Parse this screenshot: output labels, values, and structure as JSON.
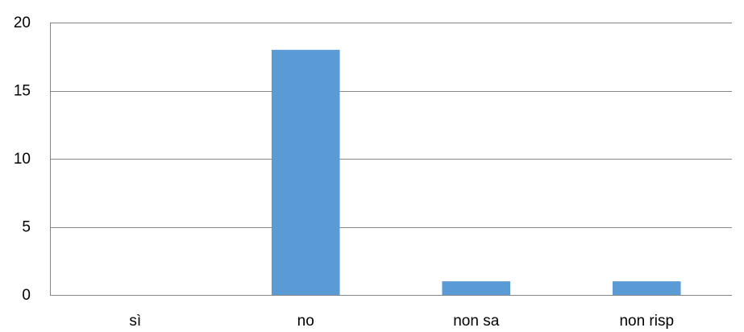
{
  "chart_data": {
    "type": "bar",
    "title": "",
    "xlabel": "",
    "ylabel": "",
    "categories": [
      "sì",
      "no",
      "non sa",
      "non risp"
    ],
    "values": [
      0,
      18,
      1,
      1
    ],
    "ylim": [
      0,
      20
    ],
    "yticks": [
      0,
      5,
      10,
      15,
      20
    ],
    "grid": true,
    "legend": "none",
    "colors": {
      "bar": "#5b9bd5",
      "grid": "#868686",
      "axis": "#868686",
      "text": "#000000"
    }
  }
}
